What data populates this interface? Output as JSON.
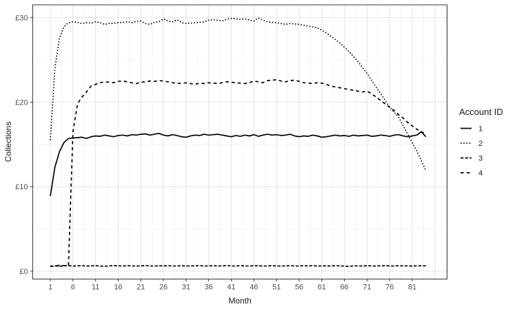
{
  "chart_data": {
    "type": "line",
    "title": "",
    "xlabel": "Month",
    "ylabel": "Collections",
    "xlim": [
      1,
      84
    ],
    "ylim": [
      0,
      30
    ],
    "grid": "on",
    "currency_prefix": "£",
    "x_ticks": {
      "values": [
        1,
        6,
        11,
        16,
        21,
        26,
        31,
        36,
        41,
        46,
        51,
        56,
        61,
        66,
        71,
        76,
        81
      ],
      "labels": [
        "1",
        "6",
        "11",
        "16",
        "21",
        "26",
        "31",
        "36",
        "41",
        "46",
        "51",
        "56",
        "61",
        "66",
        "71",
        "76",
        "81"
      ]
    },
    "y_ticks": {
      "values": [
        0,
        10,
        20,
        30
      ],
      "labels": [
        "£0",
        "£10",
        "£20",
        "£30"
      ]
    },
    "legend": {
      "title": "Account ID",
      "position": "right"
    },
    "x": [
      1,
      2,
      3,
      4,
      5,
      6,
      7,
      8,
      9,
      10,
      11,
      12,
      13,
      14,
      15,
      16,
      17,
      18,
      19,
      20,
      21,
      22,
      23,
      24,
      25,
      26,
      27,
      28,
      29,
      30,
      31,
      32,
      33,
      34,
      35,
      36,
      37,
      38,
      39,
      40,
      41,
      42,
      43,
      44,
      45,
      46,
      47,
      48,
      49,
      50,
      51,
      52,
      53,
      54,
      55,
      56,
      57,
      58,
      59,
      60,
      61,
      62,
      63,
      64,
      65,
      66,
      67,
      68,
      69,
      70,
      71,
      72,
      73,
      74,
      75,
      76,
      77,
      78,
      79,
      80,
      81,
      82,
      83,
      84
    ],
    "series": [
      {
        "name": "1",
        "linetype": "solid",
        "values": [
          8.9,
          12.3,
          14.1,
          15.2,
          15.7,
          15.75,
          15.8,
          15.85,
          15.7,
          15.9,
          16.0,
          15.95,
          16.1,
          16.0,
          15.9,
          16.05,
          16.1,
          16.0,
          16.15,
          16.1,
          16.2,
          16.25,
          16.1,
          16.2,
          16.3,
          16.1,
          16.0,
          16.15,
          16.05,
          15.9,
          15.85,
          16.0,
          16.1,
          16.05,
          16.2,
          16.1,
          16.15,
          16.2,
          16.1,
          16.0,
          15.9,
          16.05,
          15.95,
          16.1,
          16.0,
          16.15,
          15.95,
          16.1,
          16.2,
          16.1,
          16.15,
          16.05,
          16.1,
          16.2,
          16.0,
          15.9,
          16.0,
          15.95,
          16.1,
          16.0,
          15.85,
          15.9,
          16.0,
          16.1,
          16.0,
          16.05,
          15.95,
          16.1,
          16.0,
          16.05,
          16.1,
          15.95,
          16.0,
          16.1,
          16.05,
          15.95,
          16.1,
          16.15,
          16.0,
          15.9,
          16.0,
          16.1,
          16.5,
          15.9
        ]
      },
      {
        "name": "2",
        "linetype": "dotted",
        "values": [
          15.5,
          24.0,
          27.5,
          28.9,
          29.4,
          29.5,
          29.45,
          29.3,
          29.4,
          29.35,
          29.5,
          29.4,
          29.2,
          29.3,
          29.35,
          29.4,
          29.45,
          29.5,
          29.4,
          29.55,
          29.6,
          29.3,
          29.2,
          29.45,
          29.5,
          29.85,
          29.6,
          29.5,
          29.75,
          29.4,
          29.3,
          29.35,
          29.4,
          29.45,
          29.5,
          29.7,
          29.75,
          29.7,
          29.6,
          29.8,
          29.9,
          29.85,
          29.8,
          29.85,
          29.7,
          29.6,
          29.95,
          29.7,
          29.5,
          29.45,
          29.4,
          29.3,
          29.2,
          29.3,
          29.25,
          29.2,
          29.1,
          29.0,
          28.9,
          28.8,
          28.5,
          28.2,
          27.8,
          27.4,
          27.0,
          26.5,
          26.0,
          25.4,
          24.8,
          24.1,
          23.4,
          22.6,
          21.8,
          21.0,
          20.2,
          19.4,
          18.8,
          18.2,
          17.2,
          16.2,
          15.2,
          14.2,
          13.1,
          11.9
        ]
      },
      {
        "name": "3",
        "linetype": "dashdot",
        "values": [
          0.6,
          0.62,
          0.58,
          0.64,
          0.66,
          0.6,
          0.63,
          0.65,
          0.6,
          0.62,
          0.64,
          0.6,
          0.58,
          0.62,
          0.65,
          0.63,
          0.6,
          0.64,
          0.62,
          0.6,
          0.63,
          0.66,
          0.62,
          0.6,
          0.64,
          0.62,
          0.65,
          0.6,
          0.62,
          0.64,
          0.6,
          0.63,
          0.62,
          0.65,
          0.6,
          0.62,
          0.64,
          0.6,
          0.63,
          0.65,
          0.62,
          0.6,
          0.64,
          0.62,
          0.6,
          0.65,
          0.63,
          0.6,
          0.62,
          0.64,
          0.62,
          0.6,
          0.63,
          0.65,
          0.62,
          0.6,
          0.64,
          0.62,
          0.65,
          0.6,
          0.62,
          0.63,
          0.6,
          0.64,
          0.62,
          0.6,
          0.55,
          0.63,
          0.62,
          0.6,
          0.64,
          0.62,
          0.6,
          0.63,
          0.65,
          0.62,
          0.6,
          0.64,
          0.62,
          0.63,
          0.6,
          0.62,
          0.64,
          0.62
        ]
      },
      {
        "name": "4",
        "linetype": "dashed",
        "values": [
          0.55,
          0.6,
          0.7,
          0.65,
          0.7,
          16.5,
          19.8,
          20.6,
          21.2,
          21.9,
          22.1,
          22.3,
          22.4,
          22.35,
          22.3,
          22.45,
          22.5,
          22.4,
          22.3,
          22.2,
          22.35,
          22.4,
          22.5,
          22.45,
          22.55,
          22.5,
          22.4,
          22.3,
          22.25,
          22.2,
          22.3,
          22.2,
          22.1,
          22.25,
          22.2,
          22.3,
          22.25,
          22.2,
          22.3,
          22.4,
          22.35,
          22.3,
          22.25,
          22.2,
          22.3,
          22.5,
          22.4,
          22.3,
          22.55,
          22.6,
          22.65,
          22.5,
          22.4,
          22.55,
          22.6,
          22.45,
          22.3,
          22.25,
          22.2,
          22.3,
          22.25,
          22.1,
          21.9,
          21.8,
          21.7,
          21.6,
          21.5,
          21.4,
          21.3,
          21.2,
          21.3,
          21.0,
          20.6,
          20.2,
          19.8,
          19.4,
          19.0,
          18.5,
          18.1,
          17.6,
          17.2,
          16.8,
          16.5,
          16.2
        ]
      }
    ]
  }
}
